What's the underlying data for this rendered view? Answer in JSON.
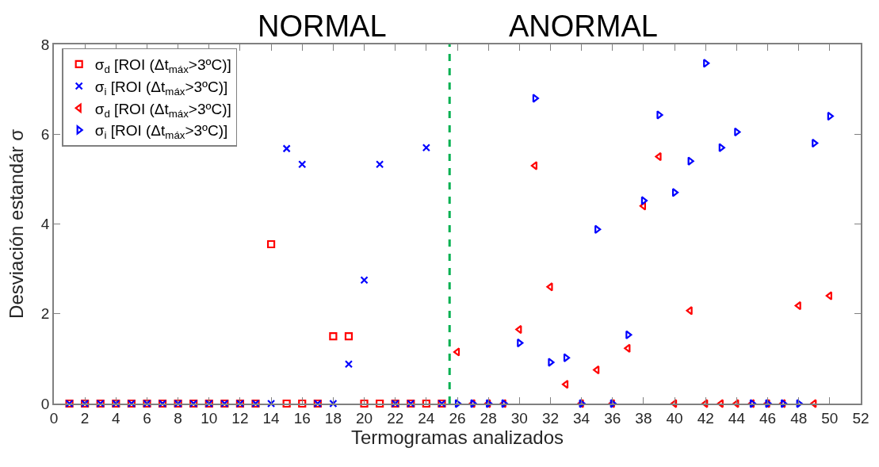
{
  "chart_data": {
    "type": "scatter",
    "xlabel": "Termogramas analizados",
    "ylabel": "Desviación estandár σ",
    "annotations": [
      "NORMAL",
      "ANORMAL"
    ],
    "x": [
      1,
      2,
      3,
      4,
      5,
      6,
      7,
      8,
      9,
      10,
      11,
      12,
      13,
      14,
      15,
      16,
      17,
      18,
      19,
      20,
      21,
      22,
      23,
      24,
      25
    ],
    "series": [
      {
        "name": "σ$_{d}$ [ROI (Δt$_{máx}$>3ºC)]",
        "color": "#ff0000",
        "marker": "square",
        "values": [
          0,
          0,
          0,
          0,
          0,
          0,
          0,
          0,
          0,
          0,
          0,
          0,
          0,
          3.55,
          0,
          0,
          0,
          1.5,
          1.5,
          0,
          0,
          0,
          0,
          0,
          0
        ]
      },
      {
        "name": "σ$_{i}$ [ROI (Δt$_{máx}$>3ºC)]",
        "color": "#0000ff",
        "marker": "x",
        "values": [
          0,
          0,
          0,
          0,
          0,
          0,
          0,
          0,
          0,
          0,
          0,
          0,
          0,
          0,
          5.68,
          5.33,
          0,
          0,
          0.88,
          2.75,
          5.33,
          0,
          0,
          5.7,
          0
        ]
      },
      {
        "name": "σ$_{d}$ [ROI (Δt$_{máx}$>3ºC)]",
        "color": "#ff0000",
        "marker": "triangle-left",
        "x": [
          26,
          27,
          28,
          29,
          30,
          31,
          32,
          33,
          34,
          35,
          36,
          37,
          38,
          39,
          40,
          41,
          42,
          43,
          44,
          45,
          46,
          47,
          48,
          49,
          50
        ],
        "values": [
          1.15,
          0,
          0,
          0,
          1.65,
          5.3,
          2.6,
          0.43,
          0,
          0.75,
          0,
          1.23,
          4.4,
          5.5,
          0,
          2.07,
          0,
          0,
          0,
          0,
          0,
          0,
          2.18,
          0,
          2.4
        ]
      },
      {
        "name": "σ$_{i}$ [ROI (Δt$_{máx}$>3ºC)]",
        "color": "#0000ff",
        "marker": "triangle-right",
        "x": [
          26,
          27,
          28,
          29,
          30,
          31,
          32,
          33,
          34,
          35,
          36,
          37,
          38,
          39,
          40,
          41,
          42,
          43,
          44,
          45,
          46,
          47,
          48,
          49,
          50
        ],
        "values": [
          0,
          0,
          0,
          0,
          1.35,
          6.8,
          0.92,
          1.02,
          0,
          3.88,
          0,
          1.53,
          4.52,
          6.43,
          4.7,
          5.4,
          7.58,
          5.7,
          6.05,
          0,
          0,
          0,
          0,
          5.8,
          6.4
        ]
      }
    ],
    "ref_lines": [
      {
        "axis": "x",
        "value": 25.5,
        "color": "#00b050",
        "line_style": "dashed"
      }
    ],
    "xlim": [
      0,
      52
    ],
    "xticks": [
      0,
      2,
      4,
      6,
      8,
      10,
      12,
      14,
      16,
      18,
      20,
      22,
      24,
      26,
      28,
      30,
      32,
      34,
      36,
      38,
      40,
      42,
      44,
      46,
      48,
      50,
      52
    ],
    "ylim": [
      0,
      8
    ],
    "yticks": [
      0,
      2,
      4,
      6,
      8
    ],
    "legend": "top left"
  }
}
